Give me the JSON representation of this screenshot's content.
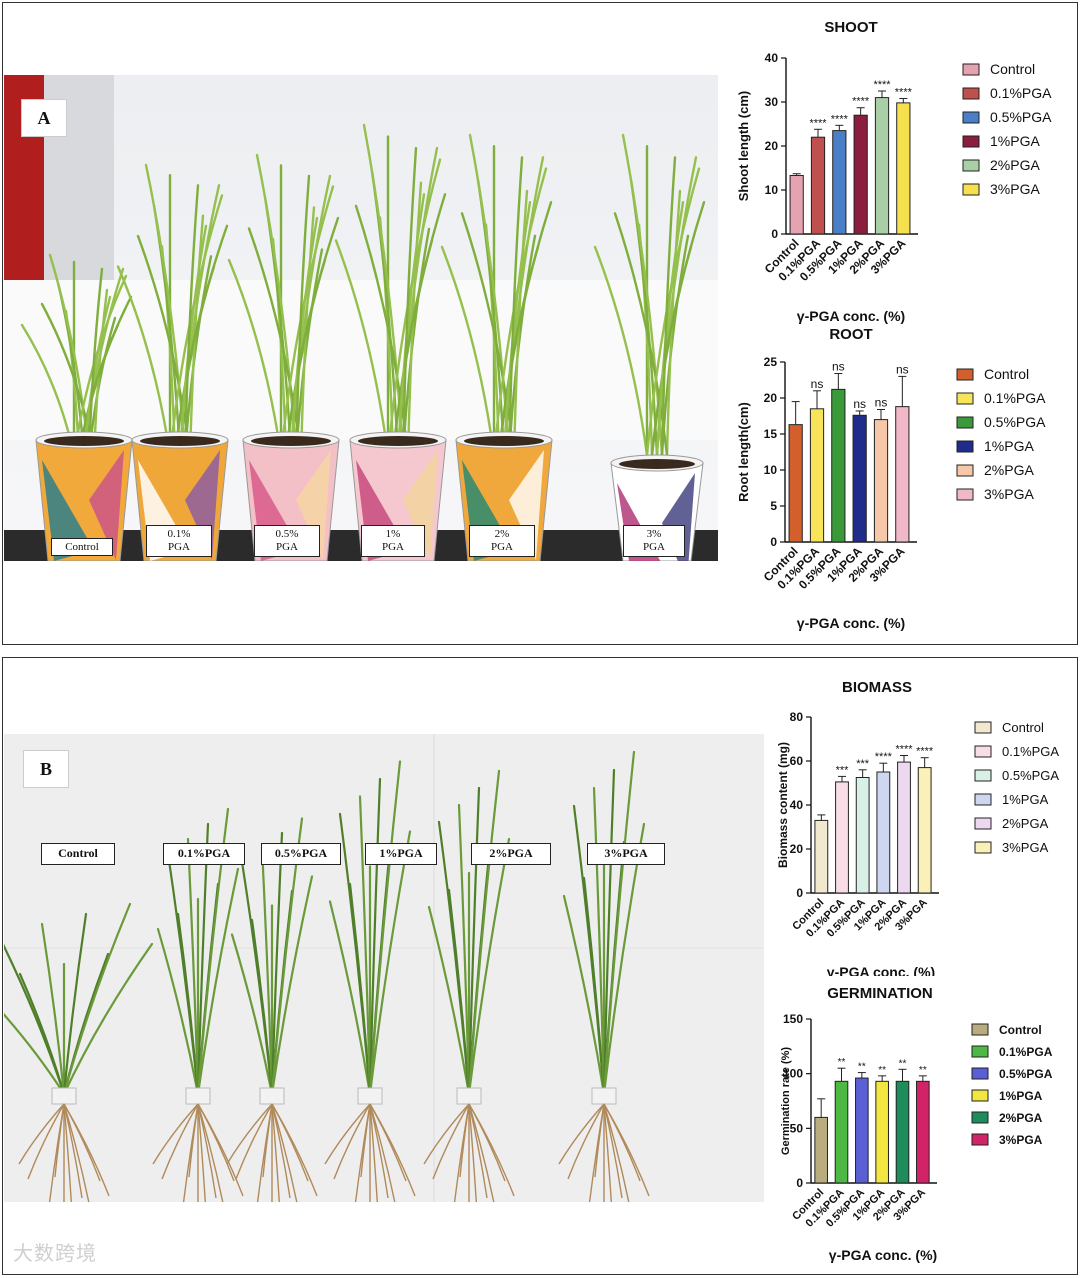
{
  "panel_a": {
    "letter": "A",
    "pot_labels": [
      {
        "line1": "Control",
        "line2": ""
      },
      {
        "line1": "0.1%",
        "line2": "PGA"
      },
      {
        "line1": "0.5%",
        "line2": "PGA"
      },
      {
        "line1": "1%",
        "line2": "PGA"
      },
      {
        "line1": "2%",
        "line2": "PGA"
      },
      {
        "line1": "3%",
        "line2": "PGA"
      }
    ]
  },
  "panel_b": {
    "letter": "B",
    "seedling_labels": [
      "Control",
      "0.1%PGA",
      "0.5%PGA",
      "1%PGA",
      "2%PGA",
      "3%PGA"
    ]
  },
  "watermark": "大数跨境",
  "chart_data": [
    {
      "type": "bar",
      "title": "SHOOT",
      "xlabel": "γ-PGA conc. (%)",
      "ylabel": "Shoot length (cm)",
      "ylim": [
        0,
        40
      ],
      "yticks": [
        0,
        10,
        20,
        30,
        40
      ],
      "categories": [
        "Control",
        "0.1%PGA",
        "0.5%PGA",
        "1%PGA",
        "2%PGA",
        "3%PGA"
      ],
      "values": [
        13.3,
        22.0,
        23.5,
        27.0,
        31.0,
        29.8
      ],
      "errors": [
        0.4,
        1.8,
        1.2,
        1.7,
        1.5,
        1.0
      ],
      "annotations": [
        "",
        "****",
        "****",
        "****",
        "****",
        "****"
      ],
      "colors": [
        "#e5a3b1",
        "#c0504d",
        "#4a7fc8",
        "#8b1e3f",
        "#a8cfa5",
        "#f6e04d"
      ],
      "legend": [
        "Control",
        "0.1%PGA",
        "0.5%PGA",
        "1%PGA",
        "2%PGA",
        "3%PGA"
      ],
      "legend_position": "right",
      "grid": false
    },
    {
      "type": "bar",
      "title": "ROOT",
      "xlabel": "γ-PGA conc. (%)",
      "ylabel": "Root length(cm)",
      "ylim": [
        0,
        25
      ],
      "yticks": [
        0,
        5,
        10,
        15,
        20,
        25
      ],
      "categories": [
        "Control",
        "0.1%PGA",
        "0.5%PGA",
        "1%PGA",
        "2%PGA",
        "3%PGA"
      ],
      "values": [
        16.3,
        18.5,
        21.2,
        17.6,
        17.0,
        18.8
      ],
      "errors": [
        3.2,
        2.5,
        2.2,
        0.6,
        1.4,
        4.2
      ],
      "annotations": [
        "",
        "ns",
        "ns",
        "ns",
        "ns",
        "ns"
      ],
      "colors": [
        "#d35f2c",
        "#f7e45a",
        "#3a9a3a",
        "#1f2c8a",
        "#f6c7a8",
        "#f1b8c8"
      ],
      "legend": [
        "Control",
        "0.1%PGA",
        "0.5%PGA",
        "1%PGA",
        "2%PGA",
        "3%PGA"
      ],
      "legend_position": "right",
      "grid": false
    },
    {
      "type": "bar",
      "title": "BIOMASS",
      "xlabel": "γ-PGA conc. (%)",
      "ylabel": "Biomass content (mg)",
      "ylim": [
        0,
        80
      ],
      "yticks": [
        0,
        20,
        40,
        60,
        80
      ],
      "categories": [
        "Control",
        "0.1%PGA",
        "0.5%PGA",
        "1%PGA",
        "2%PGA",
        "3%PGA"
      ],
      "values": [
        33.0,
        50.5,
        52.5,
        55.0,
        59.5,
        57.0
      ],
      "errors": [
        2.5,
        2.5,
        3.5,
        4.0,
        3.0,
        4.5
      ],
      "annotations": [
        "",
        "***",
        "***",
        "****",
        "****",
        "****"
      ],
      "colors": [
        "#f2e8cf",
        "#f8dde6",
        "#d9f0e6",
        "#cfd6f2",
        "#ecd9f0",
        "#faf0b8"
      ],
      "legend": [
        "Control",
        "0.1%PGA",
        "0.5%PGA",
        "1%PGA",
        "2%PGA",
        "3%PGA"
      ],
      "legend_position": "right",
      "grid": false
    },
    {
      "type": "bar",
      "title": "GERMINATION",
      "xlabel": "γ-PGA conc. (%)",
      "ylabel": "Germination rate (%)",
      "ylim": [
        0,
        150
      ],
      "yticks": [
        0,
        50,
        100,
        150
      ],
      "categories": [
        "Control",
        "0.1%PGA",
        "0.5%PGA",
        "1%PGA",
        "2%PGA",
        "3%PGA"
      ],
      "values": [
        60,
        93,
        96,
        93,
        93,
        93
      ],
      "errors": [
        17,
        12,
        5,
        5,
        11,
        5
      ],
      "annotations": [
        "",
        "**",
        "**",
        "**",
        "**",
        "**"
      ],
      "colors": [
        "#b9ad7f",
        "#4db844",
        "#5b5fd6",
        "#f3e640",
        "#1f8c5c",
        "#d12468"
      ],
      "legend": [
        "Control",
        "0.1%PGA",
        "0.5%PGA",
        "1%PGA",
        "2%PGA",
        "3%PGA"
      ],
      "legend_bold": true,
      "legend_position": "right",
      "grid": false
    }
  ]
}
